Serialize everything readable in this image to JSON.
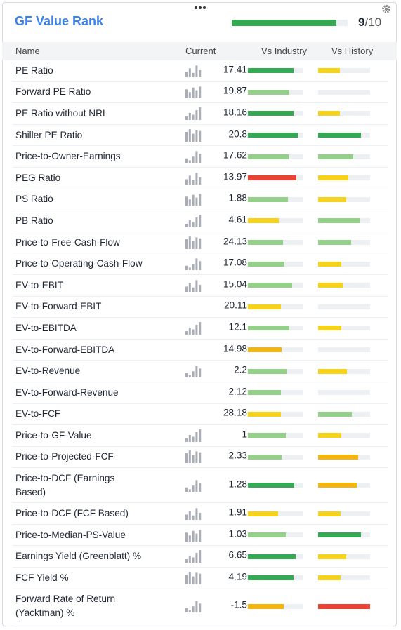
{
  "header": {
    "title": "GF Value Rank",
    "rank": 9,
    "rank_of": "/10",
    "rank_scale": [
      0,
      10
    ]
  },
  "colors": {
    "green": "#34a853",
    "lightgreen": "#95d08b",
    "yellow": "#f6d31a",
    "orange": "#f5b50f",
    "red": "#ea4335",
    "track": "#edf0f3"
  },
  "table": {
    "columns": [
      "Name",
      "Current",
      "Vs Industry",
      "Vs History"
    ],
    "rows": [
      {
        "name": "PE Ratio",
        "current": 17.41,
        "chart": true,
        "vs_industry": {
          "value": 82,
          "color": "green"
        },
        "vs_history": {
          "value": 42,
          "color": "yellow"
        }
      },
      {
        "name": "Forward PE Ratio",
        "current": 19.87,
        "chart": true,
        "vs_industry": {
          "value": 75,
          "color": "lightgreen"
        },
        "vs_history": {
          "value": 0,
          "color": "yellow"
        }
      },
      {
        "name": "PE Ratio without NRI",
        "current": 18.16,
        "chart": true,
        "vs_industry": {
          "value": 82,
          "color": "green"
        },
        "vs_history": {
          "value": 42,
          "color": "yellow"
        }
      },
      {
        "name": "Shiller PE Ratio",
        "current": 20.8,
        "chart": true,
        "vs_industry": {
          "value": 90,
          "color": "green"
        },
        "vs_history": {
          "value": 82,
          "color": "green"
        }
      },
      {
        "name": "Price-to-Owner-Earnings",
        "current": 17.62,
        "chart": true,
        "vs_industry": {
          "value": 73,
          "color": "lightgreen"
        },
        "vs_history": {
          "value": 68,
          "color": "lightgreen"
        }
      },
      {
        "name": "PEG Ratio",
        "current": 13.97,
        "chart": true,
        "vs_industry": {
          "value": 87,
          "color": "red"
        },
        "vs_history": {
          "value": 58,
          "color": "yellow"
        }
      },
      {
        "name": "PS Ratio",
        "current": 1.88,
        "chart": true,
        "vs_industry": {
          "value": 72,
          "color": "lightgreen"
        },
        "vs_history": {
          "value": 54,
          "color": "yellow"
        }
      },
      {
        "name": "PB Ratio",
        "current": 4.61,
        "chart": true,
        "vs_industry": {
          "value": 56,
          "color": "yellow"
        },
        "vs_history": {
          "value": 80,
          "color": "lightgreen"
        }
      },
      {
        "name": "Price-to-Free-Cash-Flow",
        "current": 24.13,
        "chart": true,
        "vs_industry": {
          "value": 63,
          "color": "lightgreen"
        },
        "vs_history": {
          "value": 64,
          "color": "lightgreen"
        }
      },
      {
        "name": "Price-to-Operating-Cash-Flow",
        "current": 17.08,
        "chart": true,
        "vs_industry": {
          "value": 66,
          "color": "lightgreen"
        },
        "vs_history": {
          "value": 45,
          "color": "yellow"
        }
      },
      {
        "name": "EV-to-EBIT",
        "current": 15.04,
        "chart": true,
        "vs_industry": {
          "value": 80,
          "color": "lightgreen"
        },
        "vs_history": {
          "value": 47,
          "color": "yellow"
        }
      },
      {
        "name": "EV-to-Forward-EBIT",
        "current": 20.11,
        "chart": false,
        "vs_industry": {
          "value": 59,
          "color": "yellow"
        },
        "vs_history": {
          "value": 0,
          "color": "yellow"
        }
      },
      {
        "name": "EV-to-EBITDA",
        "current": 12.1,
        "chart": true,
        "vs_industry": {
          "value": 75,
          "color": "lightgreen"
        },
        "vs_history": {
          "value": 45,
          "color": "yellow"
        }
      },
      {
        "name": "EV-to-Forward-EBITDA",
        "current": 14.98,
        "chart": false,
        "vs_industry": {
          "value": 61,
          "color": "orange"
        },
        "vs_history": {
          "value": 0,
          "color": "yellow"
        }
      },
      {
        "name": "EV-to-Revenue",
        "current": 2.2,
        "chart": true,
        "vs_industry": {
          "value": 70,
          "color": "lightgreen"
        },
        "vs_history": {
          "value": 55,
          "color": "yellow"
        }
      },
      {
        "name": "EV-to-Forward-Revenue",
        "current": 2.12,
        "chart": false,
        "vs_industry": {
          "value": 59,
          "color": "lightgreen"
        },
        "vs_history": {
          "value": 0,
          "color": "yellow"
        }
      },
      {
        "name": "EV-to-FCF",
        "current": 28.18,
        "chart": false,
        "vs_industry": {
          "value": 59,
          "color": "yellow"
        },
        "vs_history": {
          "value": 65,
          "color": "lightgreen"
        }
      },
      {
        "name": "Price-to-GF-Value",
        "current": 1,
        "chart": true,
        "vs_industry": {
          "value": 68,
          "color": "lightgreen"
        },
        "vs_history": {
          "value": 45,
          "color": "yellow"
        }
      },
      {
        "name": "Price-to-Projected-FCF",
        "current": 2.33,
        "chart": true,
        "vs_industry": {
          "value": 61,
          "color": "lightgreen"
        },
        "vs_history": {
          "value": 77,
          "color": "orange"
        }
      },
      {
        "name": "Price-to-DCF (Earnings Based)",
        "current": 1.28,
        "chart": true,
        "vs_industry": {
          "value": 84,
          "color": "green"
        },
        "vs_history": {
          "value": 74,
          "color": "orange"
        }
      },
      {
        "name": "Price-to-DCF (FCF Based)",
        "current": 1.91,
        "chart": true,
        "vs_industry": {
          "value": 54,
          "color": "yellow"
        },
        "vs_history": {
          "value": 43,
          "color": "yellow"
        }
      },
      {
        "name": "Price-to-Median-PS-Value",
        "current": 1.03,
        "chart": true,
        "vs_industry": {
          "value": 68,
          "color": "lightgreen"
        },
        "vs_history": {
          "value": 82,
          "color": "green"
        }
      },
      {
        "name": "Earnings Yield (Greenblatt) %",
        "current": 6.65,
        "chart": true,
        "vs_industry": {
          "value": 86,
          "color": "green"
        },
        "vs_history": {
          "value": 54,
          "color": "yellow"
        }
      },
      {
        "name": "FCF Yield %",
        "current": 4.19,
        "chart": true,
        "vs_industry": {
          "value": 82,
          "color": "green"
        },
        "vs_history": {
          "value": 43,
          "color": "yellow"
        }
      },
      {
        "name": "Forward Rate of Return (Yacktman) %",
        "current": -1.5,
        "chart": true,
        "vs_industry": {
          "value": 65,
          "color": "orange"
        },
        "vs_history": {
          "value": 100,
          "color": "red"
        }
      }
    ]
  }
}
